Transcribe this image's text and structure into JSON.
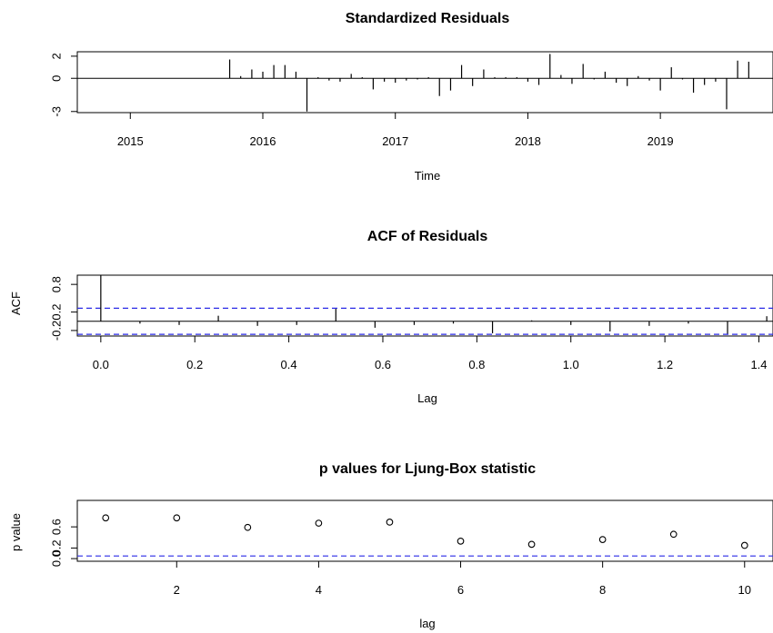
{
  "chart_data": [
    {
      "type": "line",
      "subtype": "residual-spikes",
      "title": "Standardized Residuals",
      "xlabel": "Time",
      "ylabel": "",
      "xlim": [
        2014.6,
        2019.85
      ],
      "ylim": [
        -3.1,
        2.4
      ],
      "xticks": [
        2015,
        2016,
        2017,
        2018,
        2019
      ],
      "xtick_labels": [
        "2015",
        "2016",
        "2017",
        "2018",
        "2019"
      ],
      "yticks": [
        -3,
        0,
        2
      ],
      "ytick_labels": [
        "-3",
        "0",
        "2"
      ],
      "baseline": 0,
      "x": [
        2015.75,
        2015.833,
        2015.917,
        2016.0,
        2016.083,
        2016.167,
        2016.25,
        2016.333,
        2016.417,
        2016.5,
        2016.583,
        2016.667,
        2016.75,
        2016.833,
        2016.917,
        2017.0,
        2017.083,
        2017.167,
        2017.25,
        2017.333,
        2017.417,
        2017.5,
        2017.583,
        2017.667,
        2017.75,
        2017.833,
        2017.917,
        2018.0,
        2018.083,
        2018.167,
        2018.25,
        2018.333,
        2018.417,
        2018.5,
        2018.583,
        2018.667,
        2018.75,
        2018.833,
        2018.917,
        2019.0,
        2019.083,
        2019.167,
        2019.25,
        2019.333,
        2019.417,
        2019.5,
        2019.583,
        2019.667
      ],
      "values": [
        1.7,
        0.2,
        0.8,
        0.6,
        1.2,
        1.2,
        0.6,
        -3.0,
        0.1,
        -0.2,
        -0.3,
        0.4,
        0.1,
        -1.0,
        -0.3,
        -0.4,
        -0.2,
        -0.1,
        0.1,
        -1.6,
        -1.1,
        1.2,
        -0.7,
        0.8,
        0.1,
        0.1,
        0.1,
        -0.3,
        -0.6,
        2.2,
        0.3,
        -0.5,
        1.3,
        -0.1,
        0.6,
        -0.4,
        -0.7,
        0.2,
        -0.2,
        -1.1,
        1.0,
        -0.1,
        -1.3,
        -0.6,
        -0.3,
        -2.8,
        1.6,
        1.5
      ],
      "grid": false
    },
    {
      "type": "bar",
      "subtype": "acf",
      "title": "ACF of Residuals",
      "xlabel": "Lag",
      "ylabel": "ACF",
      "xlim": [
        -0.05,
        1.43
      ],
      "ylim": [
        -0.32,
        1.0
      ],
      "xticks": [
        0.0,
        0.2,
        0.4,
        0.6,
        0.8,
        1.0,
        1.2,
        1.4
      ],
      "xtick_labels": [
        "0.0",
        "0.2",
        "0.4",
        "0.6",
        "0.8",
        "1.0",
        "1.2",
        "1.4"
      ],
      "yticks": [
        -0.2,
        0.2,
        0.8
      ],
      "ytick_labels": [
        "-0.2",
        "0.2",
        "0.8"
      ],
      "lags": [
        0.0,
        0.0833,
        0.1667,
        0.25,
        0.3333,
        0.4167,
        0.5,
        0.5833,
        0.6667,
        0.75,
        0.8333,
        0.9167,
        1.0,
        1.0833,
        1.1667,
        1.25,
        1.3333,
        1.4167
      ],
      "values": [
        1.0,
        -0.05,
        -0.08,
        0.12,
        -0.1,
        -0.08,
        0.27,
        -0.14,
        -0.08,
        -0.05,
        -0.26,
        0.02,
        -0.08,
        -0.22,
        -0.1,
        -0.05,
        -0.27,
        0.11
      ],
      "ci_bounds": [
        0.283,
        -0.283
      ],
      "grid": false
    },
    {
      "type": "scatter",
      "title": "p values for Ljung-Box statistic",
      "xlabel": "lag",
      "ylabel": "p value",
      "xlim": [
        0.6,
        10.4
      ],
      "ylim": [
        -0.05,
        1.1
      ],
      "xticks": [
        2,
        4,
        6,
        8,
        10
      ],
      "xtick_labels": [
        "2",
        "4",
        "6",
        "8",
        "10"
      ],
      "yticks": [
        0.0,
        0.2,
        0.6
      ],
      "ytick_labels": [
        "0.0",
        "0.2",
        "0.6"
      ],
      "x": [
        1,
        2,
        3,
        4,
        5,
        6,
        7,
        8,
        9,
        10
      ],
      "values": [
        0.77,
        0.77,
        0.59,
        0.67,
        0.69,
        0.33,
        0.27,
        0.36,
        0.46,
        0.25
      ],
      "significance_level": 0.05,
      "grid": false
    }
  ],
  "colors": {
    "spike": "#000000",
    "frame": "#000000",
    "reference_dashed": "#2a2ae6",
    "background": "#ffffff"
  }
}
